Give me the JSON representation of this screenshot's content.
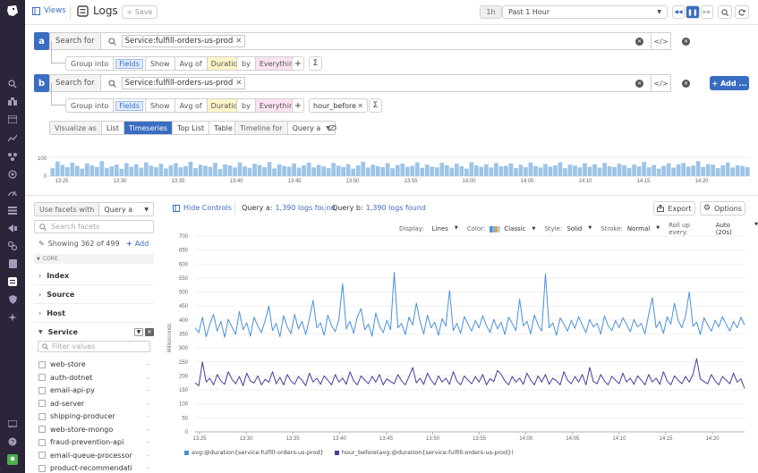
{
  "topbar": {
    "views_label": "Views",
    "page_title": "Logs",
    "save_label": "+ Save",
    "time_shortcut": "1h",
    "time_range": "Past 1 Hour"
  },
  "queries": [
    {
      "letter": "a",
      "search_for_label": "Search for",
      "tag": "Service:fulfill-orders-us-prod",
      "group_into_label": "Group into",
      "group_into_value": "Fields",
      "show_label": "Show",
      "show_agg": "Avg of",
      "show_measure": "Duration",
      "by_label": "by",
      "by_value": "Everything",
      "func_value": ""
    },
    {
      "letter": "b",
      "search_for_label": "Search for",
      "tag": "Service:fulfill-orders-us-prod",
      "group_into_label": "Group into",
      "group_into_value": "Fields",
      "show_label": "Show",
      "show_agg": "Avg of",
      "show_measure": "Duration",
      "by_label": "by",
      "by_value": "Everything",
      "func_value": "hour_before"
    }
  ],
  "add_query_label": "+ Add ...",
  "visualize": {
    "label": "Visualize as",
    "options": [
      "List",
      "Timeseries",
      "Top List",
      "Table"
    ],
    "selected": "Timeseries"
  },
  "timeline_for": {
    "label": "Timeline for",
    "value": "Query a"
  },
  "timeline": {
    "y_max_label": "100",
    "y_zero_label": "0",
    "x_ticks": [
      "13:25",
      "13:30",
      "13:35",
      "13:40",
      "13:45",
      "13:50",
      "13:55",
      "14:00",
      "14:05",
      "14:10",
      "14:15",
      "14:20"
    ],
    "bar_values": [
      42,
      78,
      60,
      48,
      72,
      55,
      40,
      68,
      58,
      49,
      80,
      44,
      52,
      62,
      39,
      70,
      50,
      64,
      45,
      74,
      56,
      48,
      66,
      41,
      58,
      69,
      47,
      53,
      77,
      43,
      61,
      55,
      49,
      71,
      38,
      62,
      57,
      46,
      73,
      52,
      44,
      66,
      59,
      48,
      75,
      41,
      63,
      54,
      50,
      68,
      45,
      58,
      72,
      47,
      60,
      52,
      43,
      70,
      56,
      49,
      64,
      40,
      57,
      76,
      46,
      61,
      53,
      48,
      69,
      42,
      59,
      67,
      50,
      55,
      73,
      44,
      62,
      51,
      47,
      71,
      58,
      45,
      66,
      53,
      40,
      74,
      57,
      49,
      63,
      46,
      70,
      52,
      55,
      68,
      43,
      60,
      48,
      72,
      54,
      46,
      65,
      51,
      58,
      74,
      42,
      61,
      56,
      47,
      69,
      50,
      63,
      45,
      71,
      53,
      48,
      66,
      58,
      44,
      62,
      52,
      76,
      47,
      59,
      40,
      55,
      68,
      45,
      63,
      70,
      51,
      57,
      80,
      49,
      64,
      61,
      43,
      58,
      72,
      46,
      57,
      54,
      48
    ]
  },
  "facets": {
    "use_facets_label": "Use facets with",
    "use_facets_value": "Query a",
    "search_placeholder": "Search facets",
    "showing_text": "Showing 362 of 499",
    "add_label": "Add",
    "core_label": "CORE",
    "groups": [
      "Index",
      "Source",
      "Host"
    ],
    "service_label": "Service",
    "filter_placeholder": "Filter values",
    "service_values": [
      "web-store",
      "auth-dotnet",
      "email-api-py",
      "ad-server",
      "shipping-producer",
      "web-store-mongo",
      "fraud-prevention-api",
      "email-queue-processor",
      "product-recommendati"
    ],
    "service_counts": [
      "-",
      "-",
      "-",
      "-",
      "-",
      "-",
      "-",
      "-",
      "-"
    ]
  },
  "controls": {
    "hide_controls": "Hide Controls",
    "query_a_label": "Query a:",
    "query_a_count": "1,390 logs found",
    "query_b_label": "Query b:",
    "query_b_count": "1,390 logs found",
    "export_label": "Export",
    "options_label": "Options"
  },
  "display_options": {
    "display_label": "Display:",
    "display_value": "Lines",
    "color_label": "Color:",
    "color_value": "Classic",
    "style_label": "Style:",
    "style_value": "Solid",
    "stroke_label": "Stroke:",
    "stroke_value": "Normal",
    "rollup_label": "Roll up every:",
    "rollup_value": "Auto (20s)"
  },
  "colors": {
    "nav_bg": "#2c2439",
    "accent": "#3a6dc1",
    "series_a": "#4a90d9",
    "series_b": "#4b3b9a",
    "timeline_bar": "#9ec4e6"
  },
  "chart_data": {
    "type": "line",
    "title": "",
    "xlabel": "",
    "ylabel": "Milliseconds",
    "ylim": [
      0,
      700
    ],
    "y_ticks": [
      0,
      50,
      100,
      150,
      200,
      250,
      300,
      350,
      400,
      450,
      500,
      550,
      600,
      650,
      700
    ],
    "x_tick_labels": [
      "13:25",
      "13:30",
      "13:35",
      "13:40",
      "13:45",
      "13:50",
      "13:55",
      "14:00",
      "14:05",
      "14:10",
      "14:15",
      "14:20"
    ],
    "series": [
      {
        "name": "avg:@duration{service:fulfill-orders-us-prod}",
        "values": [
          372,
          355,
          410,
          340,
          385,
          420,
          360,
          395,
          338,
          402,
          375,
          348,
          430,
          365,
          390,
          342,
          410,
          378,
          355,
          398,
          450,
          362,
          388,
          340,
          415,
          375,
          352,
          420,
          368,
          395,
          348,
          405,
          470,
          372,
          390,
          345,
          418,
          380,
          358,
          402,
          530,
          368,
          395,
          352,
          412,
          440,
          365,
          385,
          342,
          425,
          378,
          355,
          398,
          365,
          570,
          372,
          388,
          348,
          410,
          382,
          460,
          395,
          350,
          418,
          372,
          392,
          345,
          405,
          378,
          505,
          362,
          388,
          352,
          412,
          385,
          360,
          398,
          372,
          415,
          380,
          355,
          402,
          368,
          392,
          348,
          410,
          388,
          362,
          475,
          378,
          395,
          350,
          418,
          382,
          360,
          565,
          372,
          390,
          345,
          408,
          385,
          360,
          398,
          370,
          412,
          382,
          355,
          402,
          375,
          388,
          350,
          415,
          380,
          362,
          398,
          372,
          408,
          385,
          358,
          402,
          375,
          388,
          350,
          420,
          480,
          372,
          395,
          352,
          412,
          385,
          460,
          398,
          372,
          415,
          500,
          378,
          392,
          348,
          408,
          382,
          360,
          398,
          375,
          412,
          385,
          360,
          395,
          372,
          410,
          382
        ]
      },
      {
        "name": "hour_before(avg:@duration{service:fulfill-orders-us-prod})",
        "values": [
          175,
          165,
          250,
          178,
          192,
          168,
          205,
          182,
          170,
          215,
          188,
          172,
          198,
          165,
          210,
          182,
          175,
          200,
          168,
          188,
          178,
          215,
          172,
          195,
          168,
          205,
          182,
          170,
          198,
          185,
          165,
          210,
          178,
          192,
          170,
          200,
          185,
          168,
          205,
          178,
          192,
          170,
          215,
          182,
          168,
          200,
          185,
          172,
          198,
          178,
          205,
          168,
          190,
          180,
          172,
          205,
          182,
          168,
          198,
          230,
          175,
          192,
          170,
          210,
          185,
          168,
          200,
          178,
          192,
          170,
          215,
          182,
          168,
          200,
          185,
          172,
          198,
          178,
          205,
          168,
          190,
          180,
          220,
          205,
          182,
          168,
          198,
          178,
          192,
          170,
          210,
          185,
          168,
          200,
          178,
          205,
          170,
          192,
          182,
          168,
          215,
          185,
          172,
          198,
          178,
          205,
          168,
          230,
          180,
          172,
          205,
          182,
          168,
          198,
          185,
          172,
          210,
          178,
          192,
          170,
          200,
          185,
          168,
          205,
          178,
          192,
          170,
          215,
          182,
          168,
          200,
          185,
          172,
          198,
          178,
          205,
          262,
          190,
          180,
          172,
          205,
          182,
          168,
          198,
          185,
          172,
          210,
          178,
          190,
          155
        ]
      }
    ]
  }
}
